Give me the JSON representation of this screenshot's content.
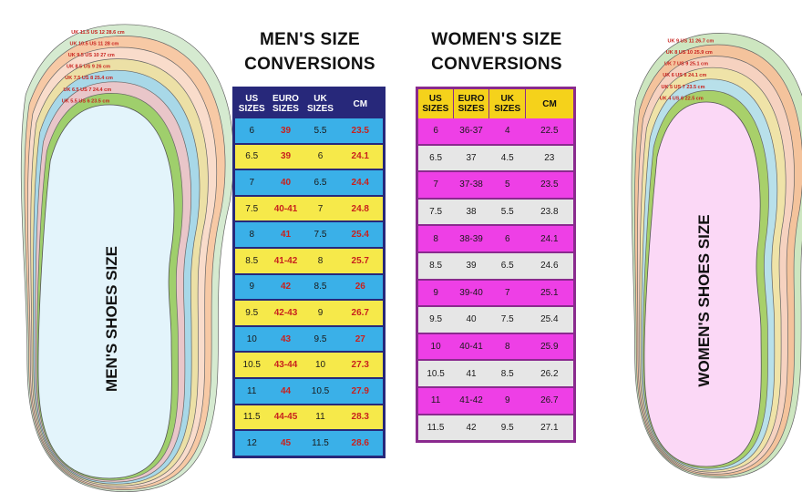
{
  "men": {
    "title_line1": "MEN'S SIZE",
    "title_line2": "CONVERSIONS",
    "headers": [
      "US SIZES",
      "EURO SIZES",
      "UK SIZES",
      "CM"
    ],
    "rows": [
      [
        "6",
        "39",
        "5.5",
        "23.5"
      ],
      [
        "6.5",
        "39",
        "6",
        "24.1"
      ],
      [
        "7",
        "40",
        "6.5",
        "24.4"
      ],
      [
        "7.5",
        "40-41",
        "7",
        "24.8"
      ],
      [
        "8",
        "41",
        "7.5",
        "25.4"
      ],
      [
        "8.5",
        "41-42",
        "8",
        "25.7"
      ],
      [
        "9",
        "42",
        "8.5",
        "26"
      ],
      [
        "9.5",
        "42-43",
        "9",
        "26.7"
      ],
      [
        "10",
        "43",
        "9.5",
        "27"
      ],
      [
        "10.5",
        "43-44",
        "10",
        "27.3"
      ],
      [
        "11",
        "44",
        "10.5",
        "27.9"
      ],
      [
        "11.5",
        "44-45",
        "11",
        "28.3"
      ],
      [
        "12",
        "45",
        "11.5",
        "28.6"
      ]
    ],
    "insole_label": "MEN'S SHOES SIZE",
    "outline_labels": [
      [
        "UK 11.5",
        "US 12",
        "28.6 cm"
      ],
      [
        "UK 10.5",
        "US 11",
        "28 cm"
      ],
      [
        "UK 9.5",
        "US 10",
        "27 cm"
      ],
      [
        "UK 8.5",
        "US 9",
        "26 cm"
      ],
      [
        "UK 7.5",
        "US 8",
        "25.4 cm"
      ],
      [
        "UK 6.5",
        "US 7",
        "24.4 cm"
      ],
      [
        "UK 5.5",
        "US 6",
        "23.5 cm"
      ]
    ]
  },
  "women": {
    "title_line1": "WOMEN'S SIZE",
    "title_line2": "CONVERSIONS",
    "headers": [
      "US SIZES",
      "EURO SIZES",
      "UK SIZES",
      "CM"
    ],
    "rows": [
      [
        "6",
        "36-37",
        "4",
        "22.5"
      ],
      [
        "6.5",
        "37",
        "4.5",
        "23"
      ],
      [
        "7",
        "37-38",
        "5",
        "23.5"
      ],
      [
        "7.5",
        "38",
        "5.5",
        "23.8"
      ],
      [
        "8",
        "38-39",
        "6",
        "24.1"
      ],
      [
        "8.5",
        "39",
        "6.5",
        "24.6"
      ],
      [
        "9",
        "39-40",
        "7",
        "25.1"
      ],
      [
        "9.5",
        "40",
        "7.5",
        "25.4"
      ],
      [
        "10",
        "40-41",
        "8",
        "25.9"
      ],
      [
        "10.5",
        "41",
        "8.5",
        "26.2"
      ],
      [
        "11",
        "41-42",
        "9",
        "26.7"
      ],
      [
        "11.5",
        "42",
        "9.5",
        "27.1"
      ]
    ],
    "insole_label": "WOMEN'S SHOES SIZE",
    "outline_labels": [
      [
        "UK 9",
        "US 11",
        "26.7 cm"
      ],
      [
        "UK 8",
        "US 10",
        "25.9 cm"
      ],
      [
        "UK 7",
        "US 9",
        "25.1 cm"
      ],
      [
        "UK 6",
        "US 8",
        "24.1 cm"
      ],
      [
        "UK 5",
        "US 7",
        "23.5 cm"
      ],
      [
        "UK 4",
        "US 6",
        "22.5 cm"
      ]
    ]
  },
  "colors": {
    "men_header": "#27287a",
    "men_row_blue": "#3ab0e8",
    "men_row_yellow": "#f6e94a",
    "men_euro_cm_text": "#c8221e",
    "women_border": "#8a2a8e",
    "women_header": "#f5d21b",
    "women_row_pink": "#ee3fe6",
    "women_row_grey": "#e6e6e6",
    "men_insole_fill": "#e3f4fb",
    "women_insole_fill": "#fbd8f6"
  }
}
